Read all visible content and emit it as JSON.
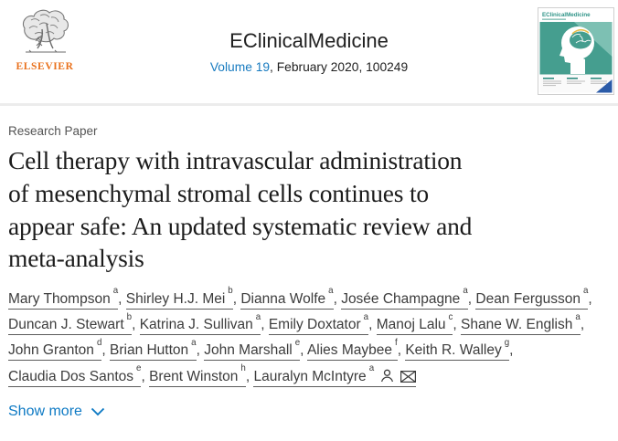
{
  "header": {
    "publisher": {
      "name_label": "ELSEVIER"
    },
    "journal_title": "EClinicalMedicine",
    "citation": {
      "volume_link": "Volume 19",
      "rest": ", February 2020, 100249"
    },
    "cover_title": "EClinicalMedicine"
  },
  "article": {
    "type_label": "Research Paper",
    "title": "Cell therapy with intravascular administration of mesenchymal stromal cells continues to appear safe: An updated systematic review and meta-analysis",
    "authors": [
      {
        "name": "Mary Thompson",
        "affiliation_sup": "a"
      },
      {
        "name": "Shirley H.J. Mei",
        "affiliation_sup": "b"
      },
      {
        "name": "Dianna Wolfe",
        "affiliation_sup": "a"
      },
      {
        "name": "Josée Champagne",
        "affiliation_sup": "a"
      },
      {
        "name": "Dean Fergusson",
        "affiliation_sup": "a"
      },
      {
        "name": "Duncan J. Stewart",
        "affiliation_sup": "b"
      },
      {
        "name": "Katrina J. Sullivan",
        "affiliation_sup": "a"
      },
      {
        "name": "Emily Doxtator",
        "affiliation_sup": "a"
      },
      {
        "name": "Manoj Lalu",
        "affiliation_sup": "c"
      },
      {
        "name": "Shane W. English",
        "affiliation_sup": "a"
      },
      {
        "name": "John Granton",
        "affiliation_sup": "d"
      },
      {
        "name": "Brian Hutton",
        "affiliation_sup": "a"
      },
      {
        "name": "John Marshall",
        "affiliation_sup": "e"
      },
      {
        "name": "Alies Maybee",
        "affiliation_sup": "f"
      },
      {
        "name": "Keith R. Walley",
        "affiliation_sup": "g"
      },
      {
        "name": "Claudia Dos Santos",
        "affiliation_sup": "e"
      },
      {
        "name": "Brent Winston",
        "affiliation_sup": "h"
      },
      {
        "name": "Lauralyn McIntyre",
        "affiliation_sup": "a",
        "corresponding_icons": [
          "person-icon",
          "email-icon"
        ]
      }
    ],
    "show_more_label": "Show more"
  },
  "icons": {
    "person": "person-icon",
    "email": "email-icon",
    "chevron": "chevron-down-icon",
    "elsevier_tree": "elsevier-tree-icon"
  },
  "colors": {
    "link_blue": "#0e7ac4",
    "volume_link_blue": "#187bc0",
    "elsevier_orange": "#e9711c",
    "cover_teal": "#459e8f",
    "cover_light_teal": "#83c3b7",
    "cover_accent_blue": "#2b5ba8",
    "title_text": "#1c1c1c",
    "muted_text": "#545454",
    "divider": "#ececec"
  }
}
